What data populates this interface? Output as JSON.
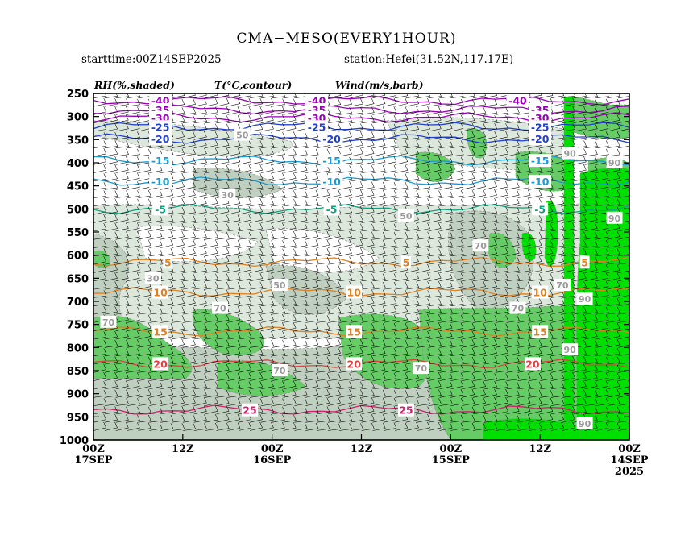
{
  "header": {
    "title": "CMA−MESO(EVERY1HOUR)",
    "starttime": "starttime:00Z14SEP2025",
    "station": "station:Hefei(31.52N,117.17E)"
  },
  "legend": {
    "rh": "RH(%,shaded)",
    "temp": "T(°C,contour)",
    "wind": "Wind(m/s,barb)"
  },
  "colors": {
    "rh_90_plus": "#00e000",
    "rh_80_90": "#66cc66",
    "rh_70_80": "#c0d0c0",
    "rh_60_70": "#dde8dd",
    "rh_below_60": "#ffffff",
    "barb": "#000000",
    "rh_label": "#9a9a9a"
  },
  "chart_data": {
    "type": "time-height cross section",
    "x_axis": {
      "direction": "time decreasing to the right",
      "range_hours_after_start": [
        72,
        0
      ],
      "ticks": [
        {
          "hours": 72,
          "label": "00Z",
          "date": "17SEP",
          "year": ""
        },
        {
          "hours": 60,
          "label": "12Z",
          "date": "",
          "year": ""
        },
        {
          "hours": 48,
          "label": "00Z",
          "date": "16SEP",
          "year": ""
        },
        {
          "hours": 36,
          "label": "12Z",
          "date": "",
          "year": ""
        },
        {
          "hours": 24,
          "label": "00Z",
          "date": "15SEP",
          "year": ""
        },
        {
          "hours": 12,
          "label": "12Z",
          "date": "",
          "year": ""
        },
        {
          "hours": 0,
          "label": "00Z",
          "date": "14SEP",
          "year": "2025"
        }
      ]
    },
    "y_axis": {
      "unit": "hPa",
      "range": [
        1000,
        250
      ],
      "ticks": [
        "250",
        "300",
        "350",
        "400",
        "450",
        "500",
        "550",
        "600",
        "650",
        "700",
        "750",
        "800",
        "850",
        "900",
        "950",
        "1000"
      ]
    },
    "rh_shading_levels": [
      60,
      70,
      80,
      90
    ],
    "temperature_contours": [
      {
        "value": -40,
        "text": "-40",
        "color": "#9b00b8",
        "pressure": 265,
        "labels_at_hours": [
          63,
          42,
          15
        ]
      },
      {
        "value": -35,
        "text": "-35",
        "color": "#9b00b8",
        "pressure": 285,
        "labels_at_hours": [
          63,
          42,
          12
        ]
      },
      {
        "value": -30,
        "text": "-30",
        "color": "#9b00b8",
        "pressure": 302,
        "labels_at_hours": [
          63,
          42,
          12
        ]
      },
      {
        "value": -25,
        "text": "-25",
        "color": "#2040d0",
        "pressure": 322,
        "labels_at_hours": [
          63,
          42,
          12
        ]
      },
      {
        "value": -20,
        "text": "-20",
        "color": "#2040d0",
        "pressure": 348,
        "labels_at_hours": [
          63,
          40,
          12
        ]
      },
      {
        "value": -15,
        "text": "-15",
        "color": "#1a9ad0",
        "pressure": 395,
        "labels_at_hours": [
          63,
          40,
          12
        ]
      },
      {
        "value": -10,
        "text": "-10",
        "color": "#1a9ad0",
        "pressure": 440,
        "labels_at_hours": [
          63,
          40,
          12
        ]
      },
      {
        "value": -5,
        "text": "-5",
        "color": "#10a080",
        "pressure": 500,
        "labels_at_hours": [
          63,
          40,
          12
        ]
      },
      {
        "value": 5,
        "text": "5",
        "color": "#e08020",
        "pressure": 615,
        "labels_at_hours": [
          62,
          30,
          6
        ]
      },
      {
        "value": 10,
        "text": "10",
        "color": "#e08020",
        "pressure": 680,
        "labels_at_hours": [
          63,
          37,
          12
        ]
      },
      {
        "value": 15,
        "text": "15",
        "color": "#e08020",
        "pressure": 765,
        "labels_at_hours": [
          63,
          37,
          12
        ]
      },
      {
        "value": 20,
        "text": "20",
        "color": "#e04040",
        "pressure": 835,
        "labels_at_hours": [
          63,
          37,
          13
        ]
      },
      {
        "value": 25,
        "text": "25",
        "color": "#d02070",
        "pressure": 935,
        "labels_at_hours": [
          51,
          30
        ]
      }
    ],
    "rh_labels": [
      {
        "text": "50",
        "hours": 52,
        "pressure": 340
      },
      {
        "text": "30",
        "hours": 54,
        "pressure": 470
      },
      {
        "text": "30",
        "hours": 64,
        "pressure": 650
      },
      {
        "text": "50",
        "hours": 47,
        "pressure": 665
      },
      {
        "text": "50",
        "hours": 30,
        "pressure": 515
      },
      {
        "text": "70",
        "hours": 20,
        "pressure": 580
      },
      {
        "text": "70",
        "hours": 70,
        "pressure": 745
      },
      {
        "text": "70",
        "hours": 55,
        "pressure": 715
      },
      {
        "text": "70",
        "hours": 28,
        "pressure": 845
      },
      {
        "text": "70",
        "hours": 47,
        "pressure": 850
      },
      {
        "text": "70",
        "hours": 15,
        "pressure": 715
      },
      {
        "text": "70",
        "hours": 9,
        "pressure": 665
      },
      {
        "text": "90",
        "hours": 2,
        "pressure": 520
      },
      {
        "text": "90",
        "hours": 6,
        "pressure": 695
      },
      {
        "text": "90",
        "hours": 8,
        "pressure": 805
      },
      {
        "text": "90",
        "hours": 6,
        "pressure": 965
      },
      {
        "text": "90",
        "hours": 2,
        "pressure": 400
      },
      {
        "text": "90",
        "hours": 8,
        "pressure": 380
      }
    ]
  }
}
